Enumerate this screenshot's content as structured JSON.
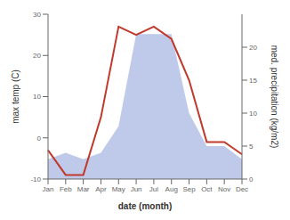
{
  "chart_data": {
    "type": "line",
    "categories": [
      "Jan",
      "Feb",
      "Mar",
      "Apr",
      "May",
      "Jun",
      "Jul",
      "Aug",
      "Sep",
      "Oct",
      "Nov",
      "Dec"
    ],
    "series": [
      {
        "type": "area",
        "color": "#b8c4e8",
        "axis": "y2",
        "values": [
          3,
          4,
          3,
          4,
          8,
          22,
          22,
          22,
          10,
          5,
          5,
          3
        ]
      },
      {
        "type": "line",
        "color": "#c0392b",
        "values": [
          -3,
          -9,
          -9,
          5,
          27,
          25,
          27,
          24,
          14,
          -1,
          -1,
          -4
        ]
      }
    ],
    "xlabel": "date (month)",
    "ylabel": "max temp (C)",
    "y2label": "med. precipitation (kg/m2)",
    "ylim": [
      -10,
      30
    ],
    "yticks": [
      -10,
      0,
      10,
      20,
      30
    ],
    "y2lim": [
      0,
      25
    ],
    "y2ticks": [
      0,
      5,
      10,
      15,
      20
    ]
  }
}
